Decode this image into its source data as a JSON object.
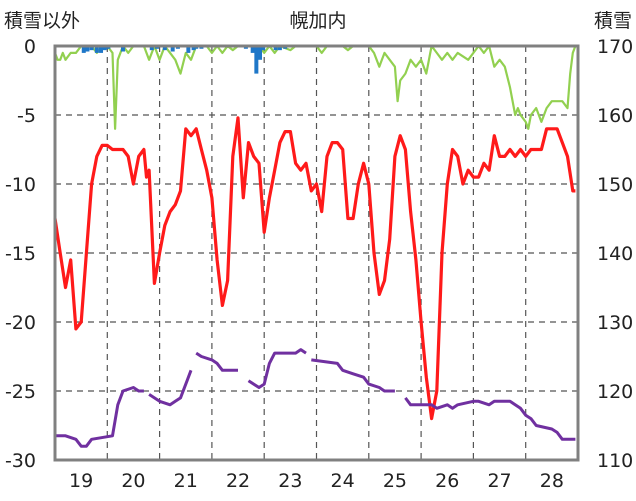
{
  "chart_data": {
    "type": "line",
    "title": "幌加内",
    "ylabel_left": "積雪以外",
    "ylabel_right": "積雪",
    "x_ticks": [
      "19",
      "20",
      "21",
      "22",
      "23",
      "24",
      "25",
      "26",
      "27",
      "28"
    ],
    "x_domain": [
      18.5,
      28.5
    ],
    "ylim_left": [
      -30,
      0
    ],
    "yticks_left": [
      0,
      -5,
      -10,
      -15,
      -20,
      -25,
      -30
    ],
    "ylim_right": [
      110,
      170
    ],
    "yticks_right": [
      170,
      160,
      150,
      140,
      130,
      120,
      110
    ],
    "grid": true,
    "colors": {
      "temperature": "#ff1a1a",
      "purple": "#7030a0",
      "green": "#92d050",
      "blue": "#1f77c8",
      "axis": "#808080",
      "grid": "#555555"
    },
    "series": [
      {
        "key": "temperature",
        "axis": "left",
        "points": [
          [
            18.5,
            -12.5
          ],
          [
            18.6,
            -15
          ],
          [
            18.7,
            -17.5
          ],
          [
            18.8,
            -15.5
          ],
          [
            18.9,
            -20.5
          ],
          [
            19.0,
            -20
          ],
          [
            19.1,
            -15
          ],
          [
            19.2,
            -10
          ],
          [
            19.3,
            -8
          ],
          [
            19.4,
            -7.2
          ],
          [
            19.5,
            -7.2
          ],
          [
            19.6,
            -7.5
          ],
          [
            19.7,
            -7.5
          ],
          [
            19.8,
            -7.5
          ],
          [
            19.9,
            -8
          ],
          [
            20.0,
            -10
          ],
          [
            20.1,
            -8
          ],
          [
            20.2,
            -7.5
          ],
          [
            20.25,
            -9.5
          ],
          [
            20.3,
            -9
          ],
          [
            20.4,
            -17.2
          ],
          [
            20.5,
            -15
          ],
          [
            20.6,
            -13
          ],
          [
            20.7,
            -12
          ],
          [
            20.8,
            -11.5
          ],
          [
            20.9,
            -10.5
          ],
          [
            21.0,
            -6
          ],
          [
            21.1,
            -6.5
          ],
          [
            21.2,
            -6
          ],
          [
            21.3,
            -7.5
          ],
          [
            21.4,
            -9
          ],
          [
            21.5,
            -11
          ],
          [
            21.6,
            -15.5
          ],
          [
            21.7,
            -18.8
          ],
          [
            21.8,
            -17
          ],
          [
            21.9,
            -8
          ],
          [
            22.0,
            -5.2
          ],
          [
            22.1,
            -11
          ],
          [
            22.2,
            -7
          ],
          [
            22.3,
            -8
          ],
          [
            22.4,
            -8.5
          ],
          [
            22.5,
            -13.5
          ],
          [
            22.6,
            -11
          ],
          [
            22.7,
            -9
          ],
          [
            22.8,
            -7
          ],
          [
            22.9,
            -6.2
          ],
          [
            23.0,
            -6.2
          ],
          [
            23.1,
            -8.5
          ],
          [
            23.2,
            -9
          ],
          [
            23.3,
            -8.5
          ],
          [
            23.4,
            -10.5
          ],
          [
            23.5,
            -10
          ],
          [
            23.6,
            -12
          ],
          [
            23.7,
            -8
          ],
          [
            23.8,
            -7
          ],
          [
            23.9,
            -7
          ],
          [
            24.0,
            -7.5
          ],
          [
            24.1,
            -12.5
          ],
          [
            24.2,
            -12.5
          ],
          [
            24.3,
            -10
          ],
          [
            24.4,
            -8.5
          ],
          [
            24.5,
            -10
          ],
          [
            24.6,
            -15
          ],
          [
            24.7,
            -18
          ],
          [
            24.8,
            -17
          ],
          [
            24.9,
            -14
          ],
          [
            25.0,
            -8
          ],
          [
            25.1,
            -6.5
          ],
          [
            25.2,
            -7.5
          ],
          [
            25.3,
            -12
          ],
          [
            25.4,
            -15.5
          ],
          [
            25.5,
            -20
          ],
          [
            25.6,
            -24
          ],
          [
            25.7,
            -27
          ],
          [
            25.8,
            -25
          ],
          [
            25.9,
            -15
          ],
          [
            26.0,
            -10
          ],
          [
            26.1,
            -7.5
          ],
          [
            26.2,
            -8
          ],
          [
            26.3,
            -10
          ],
          [
            26.4,
            -9
          ],
          [
            26.5,
            -9.5
          ],
          [
            26.6,
            -9.5
          ],
          [
            26.7,
            -8.5
          ],
          [
            26.8,
            -9
          ],
          [
            26.9,
            -6.5
          ],
          [
            27.0,
            -8
          ],
          [
            27.1,
            -8
          ],
          [
            27.2,
            -7.5
          ],
          [
            27.3,
            -8
          ],
          [
            27.4,
            -7.5
          ],
          [
            27.5,
            -8
          ],
          [
            27.6,
            -7.5
          ],
          [
            27.7,
            -7.5
          ],
          [
            27.8,
            -7.5
          ],
          [
            27.9,
            -6
          ],
          [
            28.0,
            -6
          ],
          [
            28.1,
            -6
          ],
          [
            28.2,
            -7
          ],
          [
            28.3,
            -8
          ],
          [
            28.4,
            -10.5
          ],
          [
            28.45,
            -10.5
          ]
        ]
      },
      {
        "key": "purple",
        "axis": "right",
        "segments": [
          [
            [
              18.5,
              113.5
            ],
            [
              18.7,
              113.5
            ],
            [
              18.9,
              113
            ],
            [
              19.0,
              112
            ],
            [
              19.1,
              112
            ],
            [
              19.2,
              113
            ],
            [
              19.6,
              113.5
            ],
            [
              19.7,
              118
            ],
            [
              19.8,
              120
            ],
            [
              20.0,
              120.5
            ],
            [
              20.1,
              120
            ],
            [
              20.2,
              120
            ]
          ],
          [
            [
              20.3,
              119.5
            ],
            [
              20.5,
              118.5
            ],
            [
              20.7,
              118
            ],
            [
              20.8,
              118.5
            ],
            [
              20.9,
              119
            ],
            [
              21.0,
              121
            ],
            [
              21.1,
              123
            ]
          ],
          [
            [
              21.2,
              125.5
            ],
            [
              21.3,
              125
            ],
            [
              21.5,
              124.5
            ],
            [
              21.6,
              124
            ],
            [
              21.7,
              123
            ],
            [
              22.0,
              123
            ]
          ],
          [
            [
              22.2,
              121.5
            ],
            [
              22.3,
              121
            ],
            [
              22.4,
              120.5
            ],
            [
              22.5,
              121
            ],
            [
              22.6,
              124
            ],
            [
              22.7,
              125.5
            ],
            [
              23.0,
              125.5
            ],
            [
              23.1,
              125.5
            ],
            [
              23.2,
              126
            ],
            [
              23.3,
              125.5
            ]
          ],
          [
            [
              23.4,
              124.5
            ],
            [
              23.9,
              124
            ],
            [
              24.0,
              123
            ],
            [
              24.2,
              122.5
            ],
            [
              24.4,
              122
            ],
            [
              24.5,
              121
            ],
            [
              24.7,
              120.5
            ],
            [
              24.8,
              120
            ],
            [
              25.0,
              120
            ]
          ],
          [
            [
              25.2,
              119
            ],
            [
              25.3,
              118
            ],
            [
              25.4,
              118
            ],
            [
              25.5,
              118
            ],
            [
              25.7,
              118
            ],
            [
              25.8,
              117.5
            ],
            [
              26.0,
              118
            ],
            [
              26.1,
              117.5
            ],
            [
              26.2,
              118
            ],
            [
              26.5,
              118.5
            ],
            [
              26.6,
              118.5
            ],
            [
              26.8,
              118
            ],
            [
              26.9,
              118.5
            ],
            [
              27.2,
              118.5
            ],
            [
              27.3,
              118
            ],
            [
              27.4,
              117.5
            ],
            [
              27.5,
              116.5
            ],
            [
              27.6,
              116
            ],
            [
              27.7,
              115
            ],
            [
              28.0,
              114.5
            ],
            [
              28.1,
              114
            ],
            [
              28.2,
              113
            ],
            [
              28.45,
              113
            ]
          ]
        ]
      },
      {
        "key": "green",
        "axis": "left",
        "points": [
          [
            18.5,
            -0.5
          ],
          [
            18.55,
            -1
          ],
          [
            18.6,
            -1
          ],
          [
            18.65,
            -0.5
          ],
          [
            18.7,
            -1
          ],
          [
            18.8,
            -0.5
          ],
          [
            18.9,
            -0.5
          ],
          [
            19.0,
            0
          ],
          [
            19.2,
            0
          ],
          [
            19.3,
            -0.5
          ],
          [
            19.4,
            0
          ],
          [
            19.5,
            0
          ],
          [
            19.6,
            -0.5
          ],
          [
            19.65,
            -6
          ],
          [
            19.7,
            -1
          ],
          [
            19.8,
            0
          ],
          [
            19.9,
            -0.5
          ],
          [
            20.0,
            0
          ],
          [
            20.2,
            0
          ],
          [
            20.3,
            -1
          ],
          [
            20.4,
            0
          ],
          [
            20.5,
            -1
          ],
          [
            20.6,
            0
          ],
          [
            20.7,
            -0.5
          ],
          [
            20.8,
            -1
          ],
          [
            20.9,
            -2
          ],
          [
            21.0,
            -0.5
          ],
          [
            21.1,
            -1
          ],
          [
            21.2,
            0
          ],
          [
            21.4,
            0
          ],
          [
            21.5,
            -0.5
          ],
          [
            21.6,
            0
          ],
          [
            21.7,
            -0.5
          ],
          [
            21.8,
            0
          ],
          [
            21.9,
            -0.3
          ],
          [
            22.0,
            0
          ],
          [
            22.4,
            0
          ],
          [
            22.5,
            -0.5
          ],
          [
            22.6,
            0
          ],
          [
            22.7,
            -0.5
          ],
          [
            22.8,
            0
          ],
          [
            23.0,
            -0.3
          ],
          [
            23.1,
            0
          ],
          [
            23.5,
            0
          ],
          [
            23.6,
            -0.5
          ],
          [
            23.7,
            0
          ],
          [
            24.0,
            0
          ],
          [
            24.1,
            -0.3
          ],
          [
            24.2,
            0
          ],
          [
            24.5,
            0
          ],
          [
            24.6,
            -0.5
          ],
          [
            24.7,
            -1.5
          ],
          [
            24.8,
            -0.5
          ],
          [
            24.9,
            -1
          ],
          [
            25.0,
            -1.5
          ],
          [
            25.05,
            -4
          ],
          [
            25.1,
            -2.5
          ],
          [
            25.2,
            -2
          ],
          [
            25.3,
            -1
          ],
          [
            25.4,
            -1.5
          ],
          [
            25.5,
            -1
          ],
          [
            25.6,
            -2
          ],
          [
            25.7,
            0
          ],
          [
            25.8,
            -0.5
          ],
          [
            25.9,
            -1
          ],
          [
            26.0,
            -0.5
          ],
          [
            26.1,
            -1
          ],
          [
            26.2,
            -0.5
          ],
          [
            26.4,
            -1
          ],
          [
            26.5,
            -0.5
          ],
          [
            26.6,
            0
          ],
          [
            26.7,
            -0.5
          ],
          [
            26.8,
            0
          ],
          [
            26.9,
            -1.5
          ],
          [
            27.0,
            -1
          ],
          [
            27.1,
            -1.5
          ],
          [
            27.2,
            -3
          ],
          [
            27.3,
            -5
          ],
          [
            27.35,
            -4.5
          ],
          [
            27.4,
            -5
          ],
          [
            27.5,
            -5.5
          ],
          [
            27.55,
            -6
          ],
          [
            27.6,
            -5
          ],
          [
            27.7,
            -4.5
          ],
          [
            27.8,
            -5.5
          ],
          [
            27.9,
            -4.5
          ],
          [
            28.0,
            -4
          ],
          [
            28.1,
            -4
          ],
          [
            28.2,
            -4
          ],
          [
            28.3,
            -4.5
          ],
          [
            28.35,
            -2
          ],
          [
            28.4,
            -0.5
          ],
          [
            28.45,
            0
          ]
        ]
      },
      {
        "key": "blue",
        "axis": "left",
        "type": "bar",
        "points": [
          [
            19.05,
            -0.5
          ],
          [
            19.12,
            -0.4
          ],
          [
            19.2,
            -0.3
          ],
          [
            19.3,
            -0.5
          ],
          [
            19.38,
            -0.5
          ],
          [
            19.45,
            -0.3
          ],
          [
            19.52,
            -0.2
          ],
          [
            19.8,
            -0.4
          ],
          [
            20.35,
            -0.3
          ],
          [
            20.45,
            -0.2
          ],
          [
            20.6,
            -0.3
          ],
          [
            20.75,
            -0.4
          ],
          [
            20.85,
            -0.2
          ],
          [
            21.05,
            -0.5
          ],
          [
            21.15,
            -0.3
          ],
          [
            21.2,
            -0.2
          ],
          [
            21.3,
            -0.2
          ],
          [
            22.15,
            -0.2
          ],
          [
            22.28,
            -0.5
          ],
          [
            22.35,
            -2
          ],
          [
            22.42,
            -1
          ],
          [
            22.48,
            -0.3
          ],
          [
            22.72,
            -0.3
          ],
          [
            22.8,
            -0.3
          ],
          [
            22.9,
            -0.2
          ]
        ]
      }
    ]
  }
}
